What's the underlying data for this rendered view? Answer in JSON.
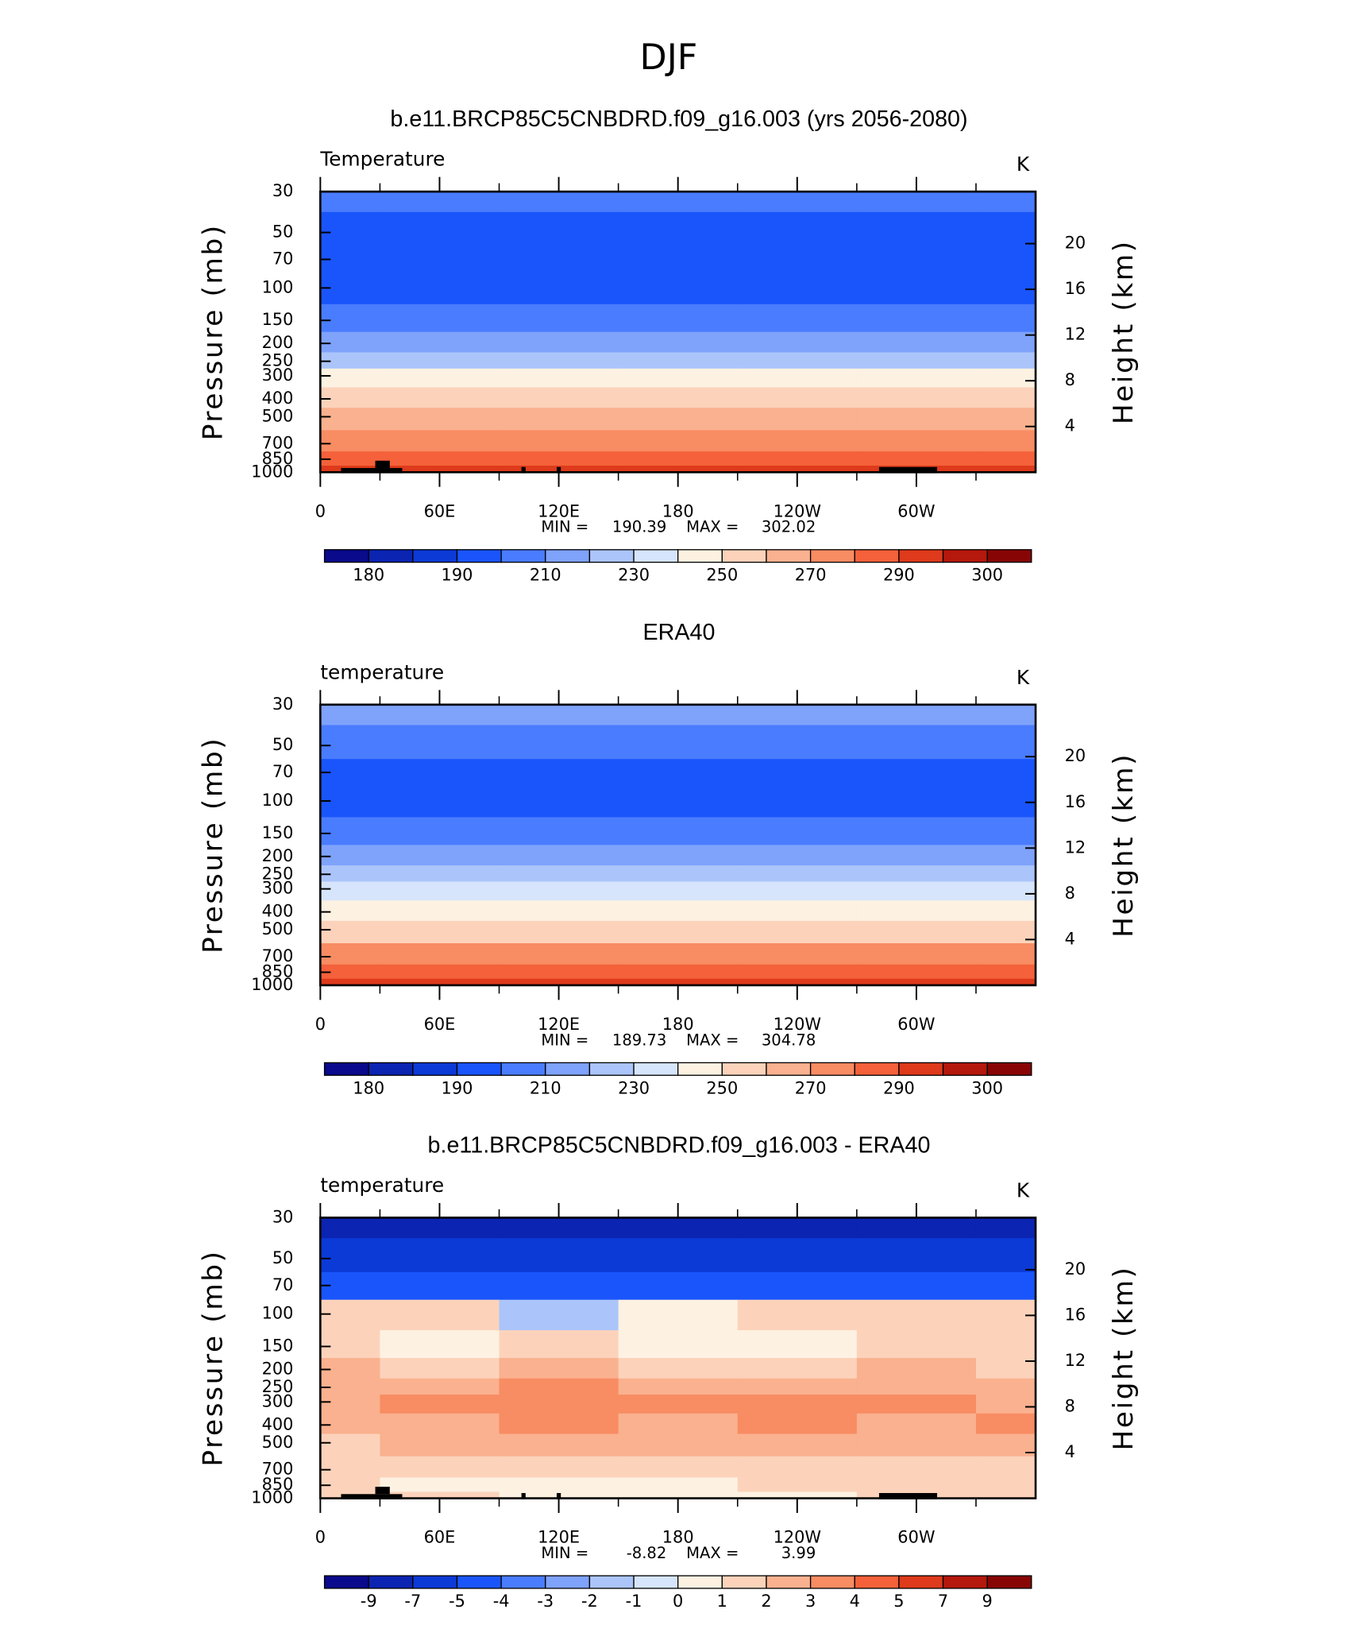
{
  "page": {
    "title": "DJF"
  },
  "chart_data": [
    {
      "type": "contour",
      "title": "b.e11.BRCP85C5CNBDRD.f09_g16.003 (yrs 2056-2080)",
      "left_label": "Temperature",
      "right_label": "K",
      "ylabel": "Pressure (mb)",
      "y2label": "Height (km)",
      "x": [
        0,
        60,
        120,
        180,
        240,
        300,
        360
      ],
      "y": [
        30,
        50,
        70,
        100,
        150,
        200,
        250,
        300,
        400,
        500,
        700,
        850,
        1000
      ],
      "z": [
        [
          205,
          205,
          205,
          205,
          205,
          205,
          205
        ],
        [
          197,
          197,
          196,
          197,
          197,
          197,
          197
        ],
        [
          195,
          195,
          195,
          195,
          195,
          195,
          195
        ],
        [
          195,
          195,
          195,
          195,
          195,
          195,
          195
        ],
        [
          205,
          204,
          203,
          204,
          204,
          205,
          205
        ],
        [
          215,
          215,
          214,
          215,
          215,
          215,
          215
        ],
        [
          225,
          225,
          225,
          225,
          225,
          225,
          225
        ],
        [
          244,
          245,
          245,
          245,
          245,
          244,
          244
        ],
        [
          255,
          256,
          256,
          255,
          255,
          255,
          255
        ],
        [
          265,
          266,
          266,
          265,
          265,
          265,
          265
        ],
        [
          277,
          278,
          278,
          277,
          277,
          277,
          277
        ],
        [
          286,
          287,
          288,
          287,
          287,
          287,
          286
        ],
        [
          292,
          291,
          294,
          293,
          293,
          292,
          292
        ]
      ],
      "xlim": [
        0,
        360
      ],
      "xticks": [
        0,
        {
          "value": 60,
          "label": "60E"
        },
        {
          "value": 120,
          "label": "120E"
        },
        180,
        {
          "value": 240,
          "label": "120W"
        },
        {
          "value": 300,
          "label": "60W"
        }
      ],
      "xminorticks": [
        30,
        90,
        150,
        210,
        270,
        330
      ],
      "ylim": [
        1000,
        30
      ],
      "log_y": true,
      "yticks": [
        30,
        50,
        70,
        100,
        150,
        200,
        250,
        300,
        400,
        500,
        700,
        850,
        1000
      ],
      "y2lim": [
        0,
        24.55
      ],
      "y2ticks": [
        4,
        8,
        12,
        16,
        20
      ],
      "min_label": "MIN =",
      "min": 190.39,
      "max_label": "MAX =",
      "max": 302.02,
      "levels": [
        180,
        185,
        190,
        200,
        210,
        220,
        230,
        240,
        250,
        260,
        270,
        280,
        290,
        295,
        300
      ],
      "level_ticks": [
        180,
        190,
        210,
        230,
        250,
        270,
        290,
        300
      ],
      "colors": [
        "#0a0a8c",
        "#0b24b2",
        "#0c3ad6",
        "#1a55fb",
        "#4a7cff",
        "#7fa2fb",
        "#abc5fa",
        "#d6e5fb",
        "#fdf1e2",
        "#fcd3ba",
        "#fab18f",
        "#f88c63",
        "#f4613a",
        "#de3a1b",
        "#b5180c",
        "#880505"
      ]
    },
    {
      "type": "contour",
      "title": "ERA40",
      "left_label": "temperature",
      "right_label": "K",
      "ylabel": "Pressure (mb)",
      "y2label": "Height (km)",
      "x": [
        0,
        60,
        120,
        180,
        240,
        300,
        360
      ],
      "y": [
        30,
        50,
        70,
        100,
        150,
        200,
        250,
        300,
        400,
        500,
        700,
        850,
        1000
      ],
      "z": [
        [
          212,
          212,
          212,
          212,
          212,
          212,
          212
        ],
        [
          203,
          203,
          203,
          203,
          203,
          203,
          203
        ],
        [
          195,
          195,
          195,
          195,
          195,
          195,
          195
        ],
        [
          194,
          194,
          193,
          192,
          194,
          194,
          194
        ],
        [
          203,
          203,
          202,
          203,
          203,
          203,
          203
        ],
        [
          213,
          213,
          213,
          213,
          213,
          213,
          213
        ],
        [
          223,
          223,
          223,
          223,
          223,
          223,
          223
        ],
        [
          236,
          236,
          236,
          236,
          236,
          236,
          236
        ],
        [
          248,
          248,
          248,
          247,
          248,
          248,
          248
        ],
        [
          258,
          258,
          258,
          258,
          258,
          258,
          258
        ],
        [
          272,
          272,
          273,
          272,
          272,
          272,
          272
        ],
        [
          283,
          284,
          284,
          284,
          284,
          283,
          283
        ],
        [
          291,
          293,
          293,
          292,
          292,
          292,
          291
        ]
      ],
      "xlim": [
        0,
        360
      ],
      "xticks": [
        0,
        {
          "value": 60,
          "label": "60E"
        },
        {
          "value": 120,
          "label": "120E"
        },
        180,
        {
          "value": 240,
          "label": "120W"
        },
        {
          "value": 300,
          "label": "60W"
        }
      ],
      "xminorticks": [
        30,
        90,
        150,
        210,
        270,
        330
      ],
      "ylim": [
        1000,
        30
      ],
      "log_y": true,
      "yticks": [
        30,
        50,
        70,
        100,
        150,
        200,
        250,
        300,
        400,
        500,
        700,
        850,
        1000
      ],
      "y2lim": [
        0,
        24.55
      ],
      "y2ticks": [
        4,
        8,
        12,
        16,
        20
      ],
      "min_label": "MIN =",
      "min": 189.73,
      "max_label": "MAX =",
      "max": 304.78,
      "levels": [
        180,
        185,
        190,
        200,
        210,
        220,
        230,
        240,
        250,
        260,
        270,
        280,
        290,
        295,
        300
      ],
      "level_ticks": [
        180,
        190,
        210,
        230,
        250,
        270,
        290,
        300
      ],
      "colors": [
        "#0a0a8c",
        "#0b24b2",
        "#0c3ad6",
        "#1a55fb",
        "#4a7cff",
        "#7fa2fb",
        "#abc5fa",
        "#d6e5fb",
        "#fdf1e2",
        "#fcd3ba",
        "#fab18f",
        "#f88c63",
        "#f4613a",
        "#de3a1b",
        "#b5180c",
        "#880505"
      ]
    },
    {
      "type": "contour",
      "title": "b.e11.BRCP85C5CNBDRD.f09_g16.003 - ERA40",
      "left_label": "temperature",
      "right_label": "K",
      "ylabel": "Pressure (mb)",
      "y2label": "Height (km)",
      "x": [
        0,
        60,
        120,
        180,
        240,
        300,
        360
      ],
      "y": [
        30,
        50,
        70,
        100,
        150,
        200,
        250,
        300,
        400,
        500,
        700,
        850,
        1000
      ],
      "z": [
        [
          -7.5,
          -7.5,
          -7.2,
          -7.5,
          -7.8,
          -7.5,
          -7.5
        ],
        [
          -5.5,
          -5.5,
          -5.2,
          -5.5,
          -5.5,
          -5.5,
          -5.8
        ],
        [
          -4.5,
          -4.5,
          -4.2,
          -4.5,
          -4.5,
          -4.5,
          -4.5
        ],
        [
          1.5,
          1.5,
          -1.5,
          0.5,
          1.5,
          1.5,
          1.5
        ],
        [
          1.5,
          0.5,
          1.5,
          0.5,
          0.5,
          1.5,
          1.5
        ],
        [
          2.5,
          1.5,
          2.5,
          1.5,
          1.5,
          2.5,
          1.5
        ],
        [
          2.5,
          2.5,
          3.5,
          2.5,
          2.5,
          2.5,
          2.5
        ],
        [
          2.5,
          3.5,
          3.5,
          3.5,
          3.5,
          3.5,
          2.5
        ],
        [
          2.5,
          2.5,
          3.5,
          2.5,
          3.5,
          2.5,
          3.5
        ],
        [
          1.5,
          2.5,
          2.5,
          2.5,
          2.5,
          2.5,
          2.5
        ],
        [
          1.5,
          1.5,
          1.5,
          1.5,
          1.5,
          1.5,
          1.5
        ],
        [
          1.5,
          0.5,
          0.5,
          0.5,
          1.5,
          1.5,
          1.5
        ],
        [
          1.5,
          1.5,
          0.5,
          0.5,
          0.5,
          1.5,
          1.5
        ]
      ],
      "xlim": [
        0,
        360
      ],
      "xticks": [
        0,
        {
          "value": 60,
          "label": "60E"
        },
        {
          "value": 120,
          "label": "120E"
        },
        180,
        {
          "value": 240,
          "label": "120W"
        },
        {
          "value": 300,
          "label": "60W"
        }
      ],
      "xminorticks": [
        30,
        90,
        150,
        210,
        270,
        330
      ],
      "ylim": [
        1000,
        30
      ],
      "log_y": true,
      "yticks": [
        30,
        50,
        70,
        100,
        150,
        200,
        250,
        300,
        400,
        500,
        700,
        850,
        1000
      ],
      "y2lim": [
        0,
        24.55
      ],
      "y2ticks": [
        4,
        8,
        12,
        16,
        20
      ],
      "min_label": "MIN =",
      "min": -8.82,
      "max_label": "MAX =",
      "max": 3.99,
      "levels": [
        -9,
        -7,
        -5,
        -4,
        -3,
        -2,
        -1,
        0,
        1,
        2,
        3,
        4,
        5,
        7,
        9
      ],
      "level_ticks": [
        -9,
        -7,
        -5,
        -4,
        -3,
        -2,
        -1,
        0,
        1,
        2,
        3,
        4,
        5,
        7,
        9
      ],
      "colors": [
        "#0a0a8c",
        "#0b24b2",
        "#0c3ad6",
        "#1a55fb",
        "#4a7cff",
        "#7fa2fb",
        "#abc5fa",
        "#d6e5fb",
        "#fdf1e2",
        "#fcd3ba",
        "#fab18f",
        "#f88c63",
        "#f4613a",
        "#de3a1b",
        "#b5180c",
        "#880505"
      ]
    }
  ]
}
